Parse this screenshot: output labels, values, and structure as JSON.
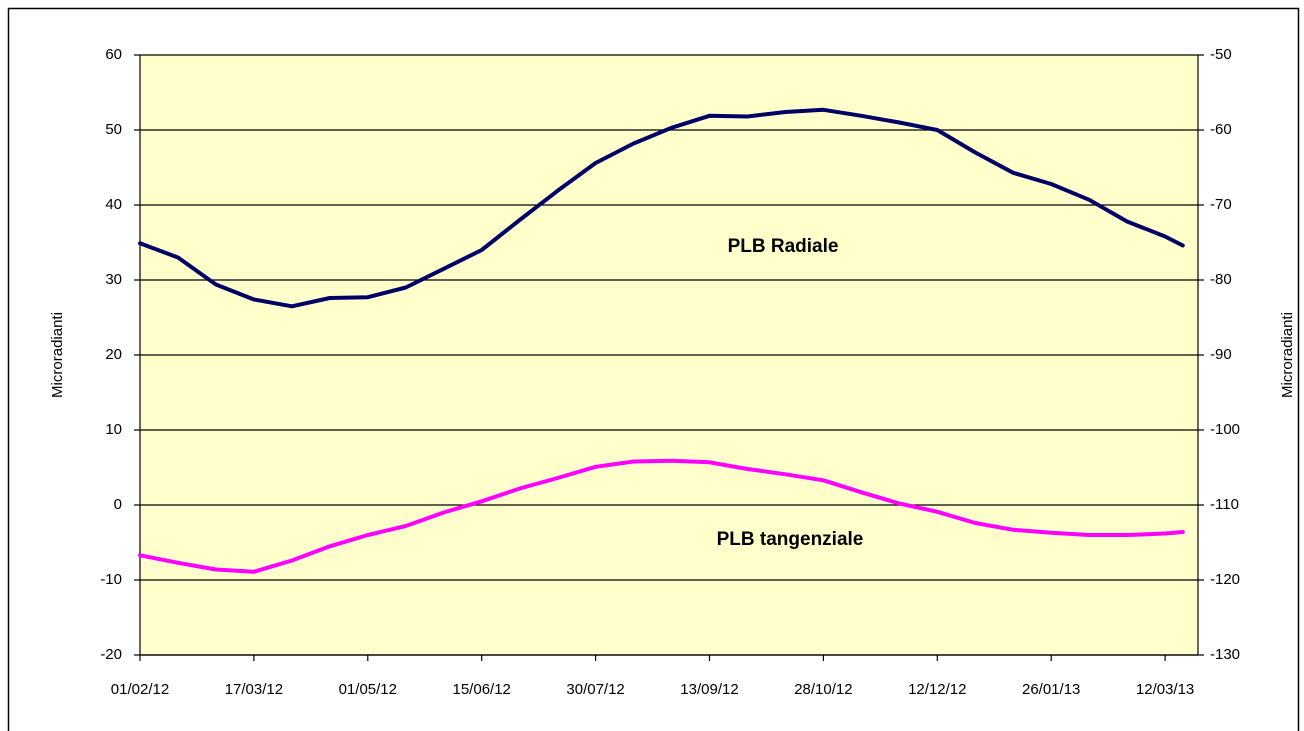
{
  "chart_data": {
    "type": "line",
    "ylabel": "Microradianti",
    "y2label": "Microradianti",
    "x": [
      "01/02/12",
      "16/02/12",
      "02/03/12",
      "17/03/12",
      "01/04/12",
      "16/04/12",
      "01/05/12",
      "16/05/12",
      "31/05/12",
      "15/06/12",
      "30/06/12",
      "15/07/12",
      "30/07/12",
      "14/08/12",
      "29/08/12",
      "13/09/12",
      "28/09/12",
      "13/10/12",
      "28/10/12",
      "12/11/12",
      "27/11/12",
      "12/12/12",
      "27/12/12",
      "11/01/13",
      "26/01/13",
      "10/02/13",
      "25/02/13",
      "12/03/13",
      "19/03/13"
    ],
    "series": [
      {
        "name": "PLB Radiale",
        "color": "#000066",
        "axis": "y",
        "values": [
          34.9,
          33.0,
          29.4,
          27.4,
          26.5,
          27.6,
          27.7,
          29.0,
          31.5,
          34.0,
          38.0,
          41.9,
          45.6,
          48.2,
          50.3,
          51.9,
          51.8,
          52.4,
          52.7,
          51.9,
          51.0,
          50.0,
          47.0,
          44.3,
          42.8,
          40.7,
          37.8,
          35.8,
          34.6
        ]
      },
      {
        "name": "PLB tangenziale",
        "color": "#ff00ff",
        "axis": "y2",
        "values": [
          -116.7,
          -117.7,
          -118.6,
          -118.9,
          -117.4,
          -115.5,
          -114.0,
          -112.8,
          -111.0,
          -109.5,
          -107.8,
          -106.4,
          -104.9,
          -104.2,
          -104.1,
          -104.3,
          -105.2,
          -105.9,
          -106.7,
          -108.3,
          -109.8,
          -110.9,
          -112.4,
          -113.3,
          -113.7,
          -114.0,
          -114.0,
          -113.8,
          -113.6
        ]
      }
    ],
    "xlim": [
      "01/02/12",
      "25/03/13"
    ],
    "xticks": [
      "01/02/12",
      "17/03/12",
      "01/05/12",
      "15/06/12",
      "30/07/12",
      "13/09/12",
      "28/10/12",
      "12/12/12",
      "26/01/13",
      "12/03/13"
    ],
    "ylim": [
      -20,
      60
    ],
    "yticks": [
      -20,
      -10,
      0,
      10,
      20,
      30,
      40,
      50,
      60
    ],
    "y2lim": [
      -130,
      -50
    ],
    "y2ticks": [
      -130,
      -120,
      -110,
      -100,
      -90,
      -80,
      -70,
      -60,
      -50
    ],
    "grid": true,
    "plot_background": "#ffffcc"
  }
}
